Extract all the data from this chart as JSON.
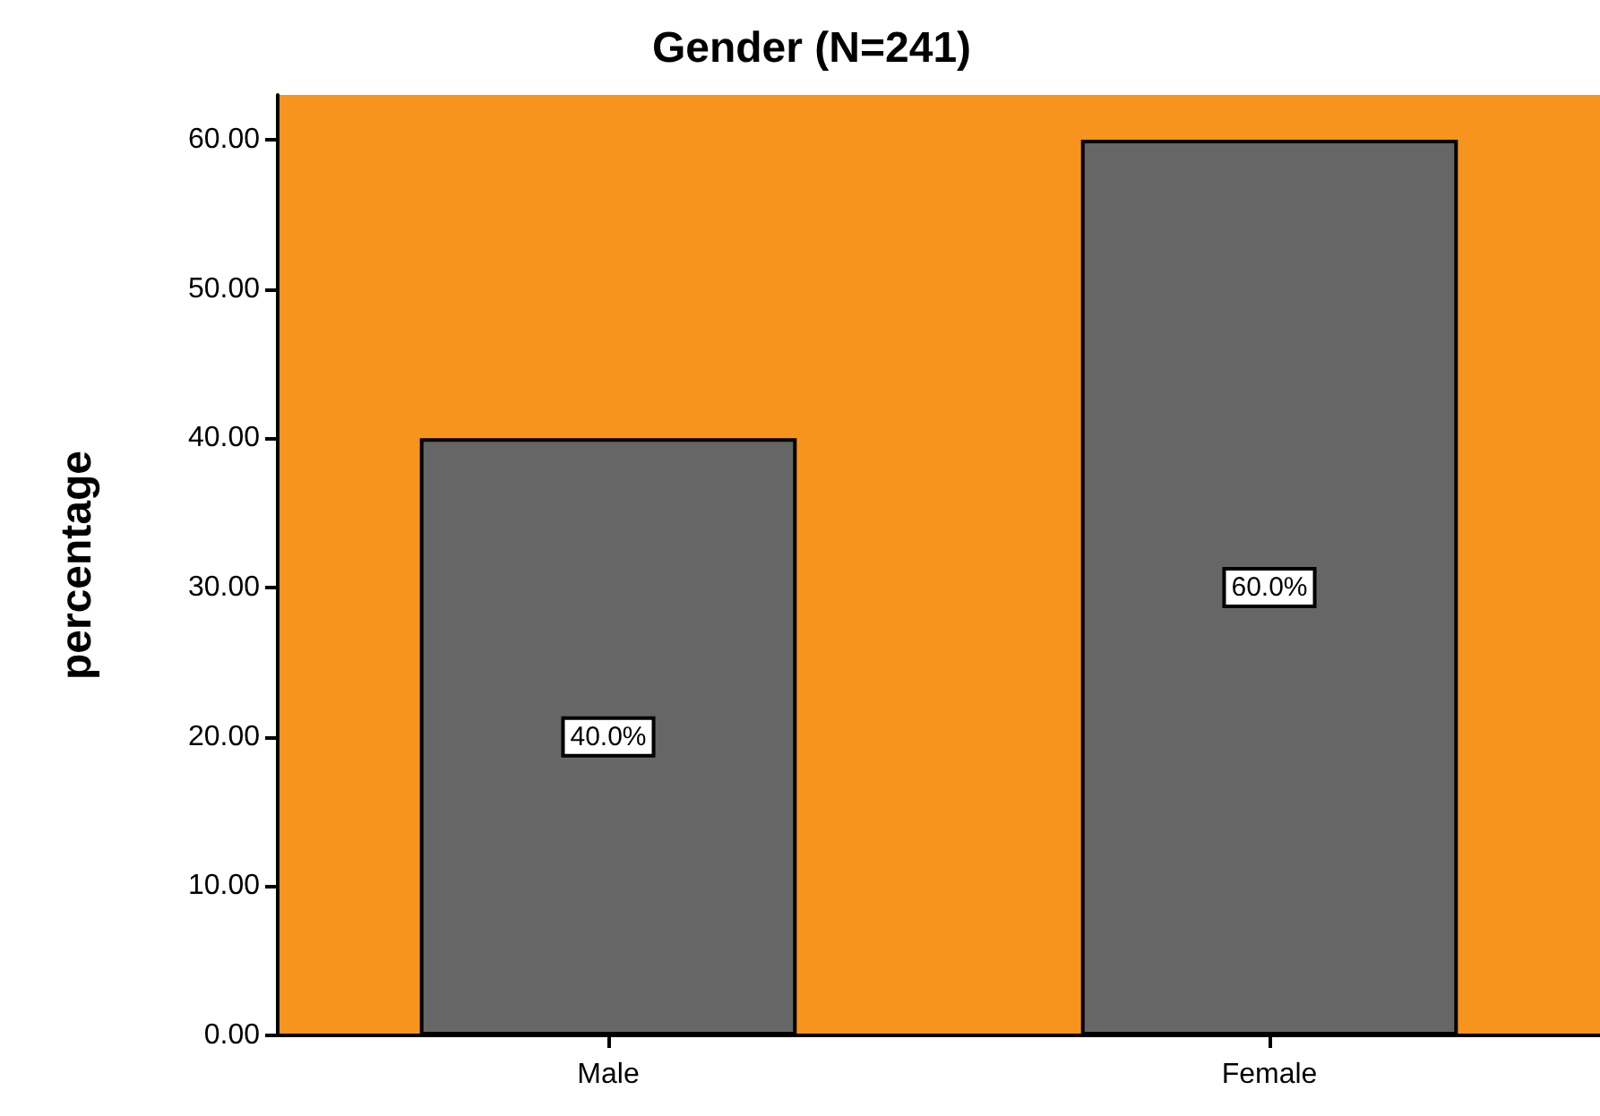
{
  "chart_data": {
    "type": "bar",
    "title": "Gender (N=241)",
    "ylabel": "percentage",
    "categories": [
      "Male",
      "Female"
    ],
    "values": [
      40.0,
      60.0
    ],
    "color": "#666666",
    "value_labels": [
      "40.0%",
      "60.0%"
    ],
    "ylim": [
      0,
      63
    ],
    "yticks": [
      {
        "value": 0,
        "label": "0.00"
      },
      {
        "value": 10,
        "label": "10.00"
      },
      {
        "value": 20,
        "label": "20.00"
      },
      {
        "value": 30,
        "label": "30.00"
      },
      {
        "value": 40,
        "label": "40.00"
      },
      {
        "value": 50,
        "label": "50.00"
      },
      {
        "value": 60,
        "label": "60.00"
      }
    ],
    "grid": false
  }
}
